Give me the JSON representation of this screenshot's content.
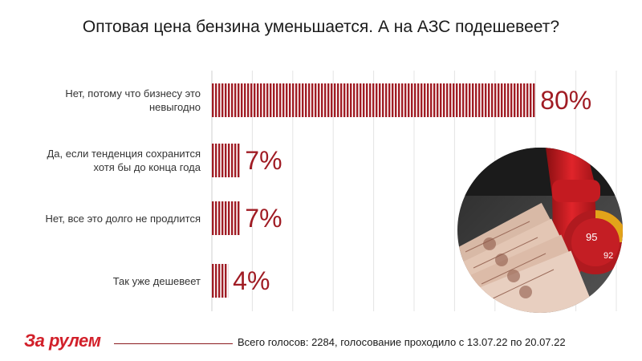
{
  "chart_data": {
    "type": "bar",
    "orientation": "horizontal",
    "title": "Оптовая цена бензина уменьшается. А на АЗС подешевеет?",
    "categories": [
      "Нет, потому что бизнесу это невыгодно",
      "Да, если тенденция сохранится хотя бы до конца года",
      "Нет, все это долго не продлится",
      "Так уже дешевеет"
    ],
    "values": [
      80,
      7,
      7,
      4
    ],
    "value_labels": [
      "80%",
      "7%",
      "7%",
      "4%"
    ],
    "xlim": [
      0,
      100
    ],
    "grid": true,
    "bar_color": "#a01c24"
  },
  "logo_text": "За рулем",
  "footer": "Всего голосов: 2284, голосование проходило с 13.07.22 по 20.07.22"
}
